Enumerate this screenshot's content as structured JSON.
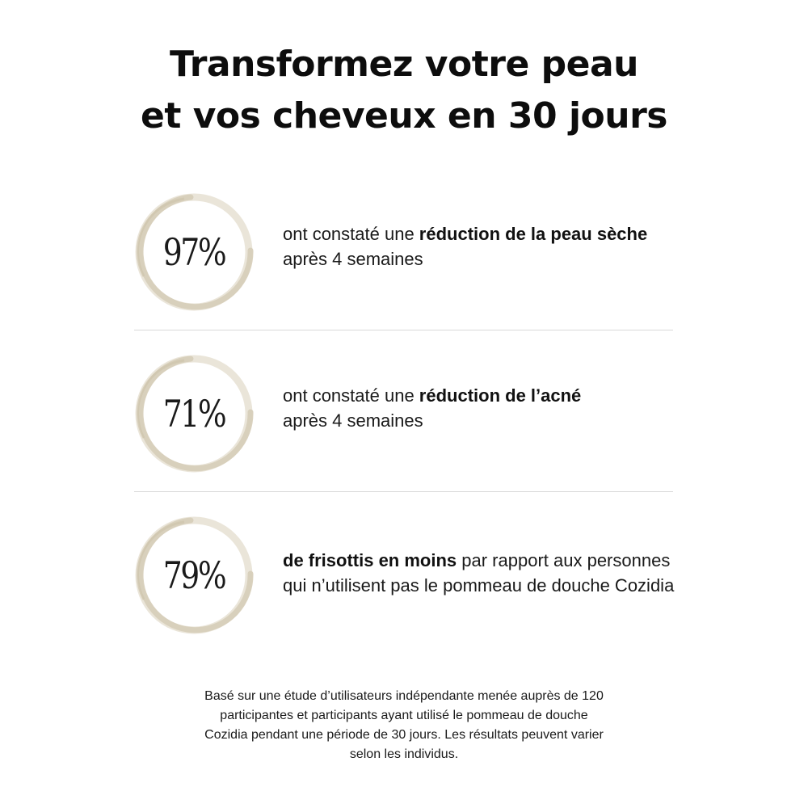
{
  "title": {
    "line1": "Transformez votre peau",
    "line2": "et vos cheveux en 30 jours"
  },
  "colors": {
    "ring": "#e2dccd",
    "ring_dark": "#cfc6b0",
    "divider": "#d9d9d9",
    "text": "#111111"
  },
  "stats": [
    {
      "percent": "97%",
      "line1_pre": "ont constaté une ",
      "line1_bold": "réduction de la peau sèche",
      "line1_post": "",
      "line2": "après 4 semaines"
    },
    {
      "percent": "71%",
      "line1_pre": "ont constaté une ",
      "line1_bold": "réduction de l’acné",
      "line1_post": "",
      "line2": "après 4 semaines"
    },
    {
      "percent": "79%",
      "line1_pre": "",
      "line1_bold": "de frisottis en moins",
      "line1_post": " par rapport aux personnes",
      "line2": "qui n’utilisent pas le pommeau de douche Cozidia"
    }
  ],
  "footnote": {
    "line1": "Basé sur une étude d’utilisateurs indépendante menée auprès de 120",
    "line2": "participantes et participants ayant utilisé le pommeau de douche",
    "line3": "Cozidia pendant une période de 30 jours. Les résultats peuvent varier",
    "line4": "selon les individus."
  }
}
